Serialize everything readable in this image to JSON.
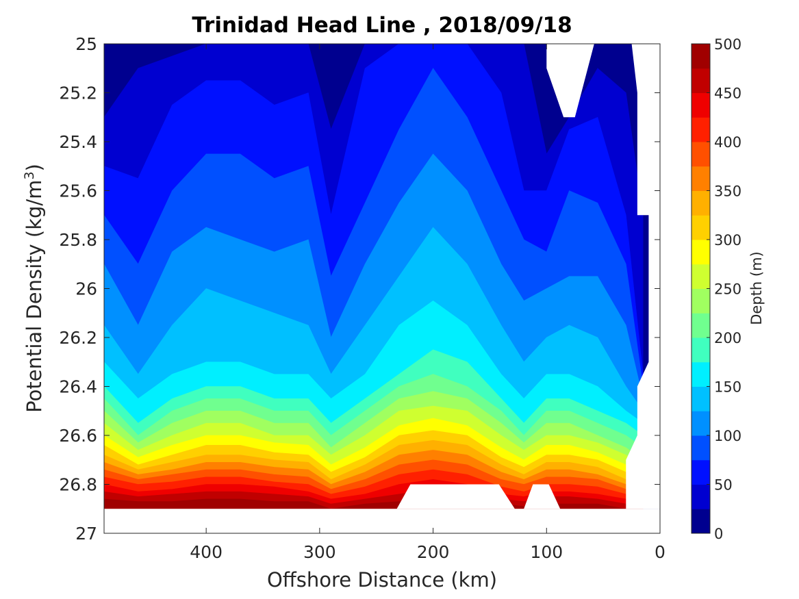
{
  "chart_data": {
    "type": "contourf",
    "title": "Trinidad Head Line , 2018/09/18",
    "xlabel": "Offshore Distance (km)",
    "ylabel_main": "Potential Density (kg/m",
    "ylabel_sup": "3",
    "ylabel_close": ")",
    "xlim": [
      490,
      0
    ],
    "x_reversed": true,
    "ylim": [
      25,
      27
    ],
    "y_reversed": true,
    "x_ticks": [
      "400",
      "300",
      "200",
      "100",
      "0"
    ],
    "x_tick_values": [
      400,
      300,
      200,
      100,
      0
    ],
    "y_ticks": [
      "25",
      "25.2",
      "25.4",
      "25.6",
      "25.8",
      "26",
      "26.2",
      "26.4",
      "26.6",
      "26.8",
      "27"
    ],
    "y_tick_values": [
      25,
      25.2,
      25.4,
      25.6,
      25.8,
      26,
      26.2,
      26.4,
      26.6,
      26.8,
      27
    ],
    "colorbar": {
      "label": "Depth (m)",
      "range": [
        0,
        500
      ],
      "ticks": [
        "0",
        "50",
        "100",
        "150",
        "200",
        "250",
        "300",
        "350",
        "400",
        "450",
        "500"
      ],
      "tick_values": [
        0,
        50,
        100,
        150,
        200,
        250,
        300,
        350,
        400,
        450,
        500
      ],
      "levels": [
        0,
        25,
        50,
        75,
        100,
        125,
        150,
        175,
        200,
        225,
        250,
        275,
        300,
        325,
        350,
        375,
        400,
        425,
        450,
        475,
        500
      ],
      "colormap": [
        "#00008f",
        "#0000d0",
        "#0010ff",
        "#0050ff",
        "#0090ff",
        "#00c0ff",
        "#00efff",
        "#40ffbf",
        "#70ff8f",
        "#a0ff60",
        "#cfff30",
        "#ffff00",
        "#ffd000",
        "#ffb000",
        "#ff8000",
        "#ff5000",
        "#ff2000",
        "#ef0000",
        "#c00000",
        "#a00000"
      ]
    },
    "stations_km": [
      490,
      460,
      430,
      400,
      370,
      340,
      310,
      290,
      260,
      230,
      200,
      170,
      140,
      120,
      100,
      80,
      55,
      30,
      15
    ],
    "depth_isopycnals": [
      {
        "depth_m": 25,
        "sigma": [
          25.3,
          25.1,
          25.05,
          25.0,
          25.0,
          25.0,
          25.0,
          25.35,
          25.0,
          25.0,
          25.0,
          25.0,
          25.0,
          25.0,
          25.45,
          25.3,
          25.1,
          25.2,
          25.7
        ]
      },
      {
        "depth_m": 50,
        "sigma": [
          25.5,
          25.55,
          25.25,
          25.15,
          25.15,
          25.25,
          25.2,
          25.7,
          25.1,
          25.0,
          25.0,
          25.0,
          25.2,
          25.6,
          25.6,
          25.35,
          25.3,
          25.7,
          26.35
        ]
      },
      {
        "depth_m": 75,
        "sigma": [
          25.7,
          25.9,
          25.6,
          25.45,
          25.45,
          25.55,
          25.5,
          25.95,
          25.65,
          25.35,
          25.1,
          25.3,
          25.6,
          25.8,
          25.85,
          25.6,
          25.65,
          25.9,
          26.4
        ]
      },
      {
        "depth_m": 100,
        "sigma": [
          25.9,
          26.15,
          25.85,
          25.75,
          25.8,
          25.85,
          25.8,
          26.2,
          25.9,
          25.65,
          25.45,
          25.6,
          25.9,
          26.05,
          26.0,
          25.95,
          25.95,
          26.15,
          26.45
        ]
      },
      {
        "depth_m": 125,
        "sigma": [
          26.15,
          26.35,
          26.15,
          26.0,
          26.05,
          26.1,
          26.15,
          26.35,
          26.15,
          25.95,
          25.75,
          25.9,
          26.15,
          26.3,
          26.2,
          26.15,
          26.2,
          26.4,
          26.5
        ]
      },
      {
        "depth_m": 150,
        "sigma": [
          26.3,
          26.45,
          26.35,
          26.3,
          26.3,
          26.35,
          26.35,
          26.45,
          26.35,
          26.15,
          26.05,
          26.15,
          26.35,
          26.45,
          26.35,
          26.35,
          26.4,
          26.5,
          26.55
        ]
      },
      {
        "depth_m": 175,
        "sigma": [
          26.4,
          26.55,
          26.45,
          26.4,
          26.4,
          26.45,
          26.45,
          26.55,
          26.45,
          26.35,
          26.25,
          26.3,
          26.45,
          26.55,
          26.45,
          26.45,
          26.5,
          26.55,
          26.6
        ]
      },
      {
        "depth_m": 200,
        "sigma": [
          26.45,
          26.6,
          26.5,
          26.45,
          26.45,
          26.5,
          26.5,
          26.6,
          26.5,
          26.4,
          26.35,
          26.4,
          26.5,
          26.6,
          26.5,
          26.5,
          26.55,
          26.6,
          26.65
        ]
      },
      {
        "depth_m": 225,
        "sigma": [
          26.5,
          26.63,
          26.55,
          26.5,
          26.5,
          26.55,
          26.55,
          26.65,
          26.55,
          26.45,
          26.42,
          26.45,
          26.55,
          26.63,
          26.55,
          26.55,
          26.6,
          26.65,
          26.7
        ]
      },
      {
        "depth_m": 250,
        "sigma": [
          26.55,
          26.66,
          26.6,
          26.55,
          26.55,
          26.6,
          26.6,
          26.68,
          26.6,
          26.5,
          26.48,
          26.5,
          26.6,
          26.66,
          26.6,
          26.6,
          26.63,
          26.68,
          26.72
        ]
      },
      {
        "depth_m": 275,
        "sigma": [
          26.6,
          26.69,
          26.64,
          26.6,
          26.6,
          26.63,
          26.64,
          26.72,
          26.65,
          26.56,
          26.53,
          26.56,
          26.65,
          26.7,
          26.64,
          26.64,
          26.67,
          26.72,
          26.75
        ]
      },
      {
        "depth_m": 300,
        "sigma": [
          26.64,
          26.72,
          26.68,
          26.64,
          26.64,
          26.67,
          26.68,
          26.75,
          26.69,
          26.6,
          26.58,
          26.6,
          26.69,
          26.73,
          26.68,
          26.68,
          26.7,
          26.75,
          26.78
        ]
      },
      {
        "depth_m": 325,
        "sigma": [
          26.68,
          26.74,
          26.71,
          26.68,
          26.68,
          26.7,
          26.71,
          26.78,
          26.72,
          26.64,
          26.62,
          26.64,
          26.72,
          26.76,
          26.71,
          26.71,
          26.73,
          26.78,
          26.8
        ]
      },
      {
        "depth_m": 350,
        "sigma": [
          26.71,
          26.76,
          26.74,
          26.71,
          26.71,
          26.73,
          26.74,
          26.8,
          26.75,
          26.68,
          26.66,
          26.68,
          26.75,
          26.78,
          26.74,
          26.74,
          26.76,
          26.8,
          26.82
        ]
      },
      {
        "depth_m": 375,
        "sigma": [
          26.74,
          26.78,
          26.76,
          26.74,
          26.74,
          26.76,
          26.77,
          26.82,
          26.78,
          26.72,
          26.7,
          26.72,
          26.78,
          26.8,
          26.77,
          26.77,
          26.78,
          26.82,
          26.84
        ]
      },
      {
        "depth_m": 400,
        "sigma": [
          26.77,
          26.8,
          26.79,
          26.77,
          26.77,
          26.79,
          26.8,
          26.84,
          26.81,
          26.76,
          26.74,
          26.76,
          26.81,
          26.83,
          26.8,
          26.8,
          26.81,
          26.84,
          26.86
        ]
      },
      {
        "depth_m": 425,
        "sigma": [
          26.8,
          26.83,
          26.82,
          26.8,
          26.8,
          26.81,
          26.83,
          26.86,
          26.84,
          26.8,
          26.78,
          26.8,
          26.84,
          26.85,
          26.83,
          26.83,
          26.84,
          26.86,
          26.88
        ]
      },
      {
        "depth_m": 450,
        "sigma": [
          26.83,
          26.85,
          26.84,
          26.83,
          26.83,
          26.84,
          26.85,
          26.88,
          26.86,
          26.84,
          26.82,
          26.83,
          26.86,
          26.87,
          26.85,
          26.85,
          26.86,
          26.88,
          26.9
        ]
      },
      {
        "depth_m": 475,
        "sigma": [
          26.86,
          26.87,
          26.87,
          26.86,
          26.86,
          26.87,
          26.87,
          26.9,
          26.88,
          26.87,
          26.86,
          26.86,
          26.88,
          26.89,
          26.88,
          26.88,
          26.88,
          26.9,
          26.91
        ]
      }
    ],
    "bottom_boundary_sigma": 26.9,
    "grid": false,
    "colorbar_position": "right"
  }
}
